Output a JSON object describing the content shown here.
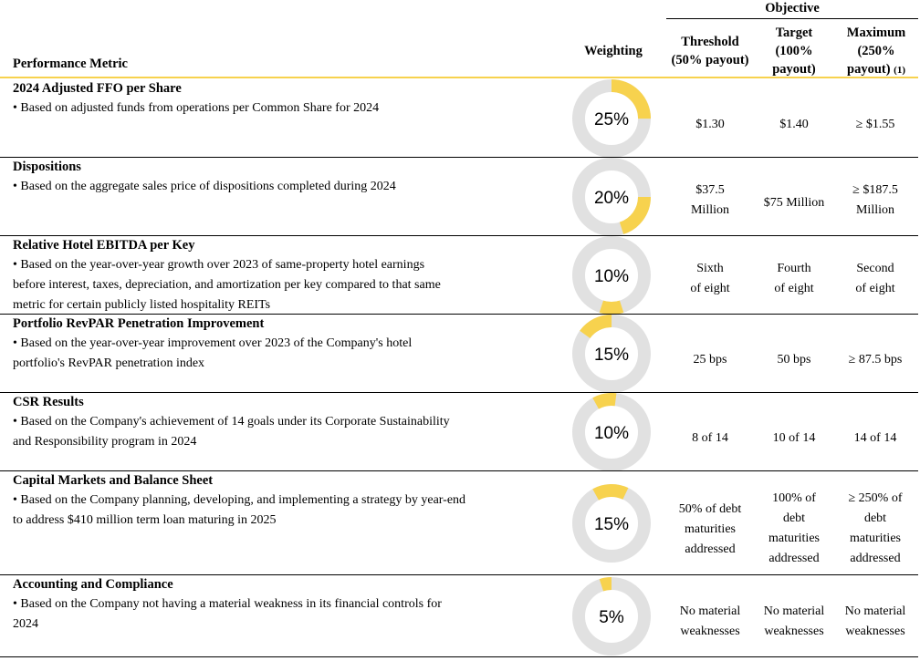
{
  "header": {
    "performance_metric": "Performance Metric",
    "weighting": "Weighting",
    "objective": "Objective",
    "threshold": [
      "Threshold",
      "(50% payout)"
    ],
    "target": [
      "Target",
      "(100%",
      "payout)"
    ],
    "maximum": [
      "Maximum",
      "(250%",
      "payout)"
    ],
    "maximum_footnote": "(1)"
  },
  "colors": {
    "accent": "#f7d24e",
    "ring": "#e1e1e1"
  },
  "rows": [
    {
      "title": "2024 Adjusted FFO per Share",
      "desc": [
        "• Based on adjusted funds from operations per Common Share for 2024"
      ],
      "weight_label": "25%",
      "weight": 0.25,
      "threshold": [
        "$1.30"
      ],
      "target": [
        "$1.40"
      ],
      "maximum": [
        "≥ $1.55"
      ]
    },
    {
      "title": "Dispositions",
      "desc": [
        "• Based on the aggregate sales price of dispositions completed during 2024"
      ],
      "weight_label": "20%",
      "weight": 0.2,
      "threshold": [
        "$37.5",
        "Million"
      ],
      "target": [
        "$75 Million"
      ],
      "maximum": [
        "≥ $187.5",
        "Million"
      ]
    },
    {
      "title": "Relative Hotel EBITDA per Key",
      "desc": [
        "• Based on the year-over-year growth over 2023 of same-property hotel earnings",
        "before interest, taxes, depreciation, and amortization per key compared to that same",
        "metric for certain publicly listed hospitality REITs"
      ],
      "weight_label": "10%",
      "weight": 0.1,
      "threshold": [
        "Sixth",
        "of eight"
      ],
      "target": [
        "Fourth",
        "of eight"
      ],
      "maximum": [
        "Second",
        "of eight"
      ]
    },
    {
      "title": "Portfolio RevPAR Penetration Improvement",
      "desc": [
        "• Based on the year-over-year improvement over 2023 of the Company's hotel",
        "portfolio's RevPAR penetration index"
      ],
      "weight_label": "15%",
      "weight": 0.15,
      "threshold": [
        "25 bps"
      ],
      "target": [
        "50 bps"
      ],
      "maximum": [
        "≥ 87.5 bps"
      ]
    },
    {
      "title": "CSR Results",
      "desc": [
        "• Based on the Company's achievement of 14 goals under its Corporate Sustainability",
        "and Responsibility program in 2024"
      ],
      "weight_label": "10%",
      "weight": 0.1,
      "threshold": [
        "8 of 14"
      ],
      "target": [
        "10 of 14"
      ],
      "maximum": [
        "14 of 14"
      ]
    },
    {
      "title": "Capital Markets and Balance Sheet",
      "desc": [
        "• Based on the Company planning, developing, and implementing a strategy by year-end",
        "to address $410 million term loan maturing in 2025"
      ],
      "weight_label": "15%",
      "weight": 0.15,
      "threshold": [
        "50% of debt",
        "maturities",
        "addressed"
      ],
      "target": [
        "100% of",
        "debt",
        "maturities",
        "addressed"
      ],
      "maximum": [
        "≥ 250% of",
        "debt",
        "maturities",
        "addressed"
      ]
    },
    {
      "title": "Accounting and Compliance",
      "desc": [
        "• Based on the Company not having a material weakness in its financial controls for",
        "2024"
      ],
      "weight_label": "5%",
      "weight": 0.05,
      "threshold": [
        "No material",
        "weaknesses"
      ],
      "target": [
        "No material",
        "weaknesses"
      ],
      "maximum": [
        "No material",
        "weaknesses"
      ]
    }
  ]
}
